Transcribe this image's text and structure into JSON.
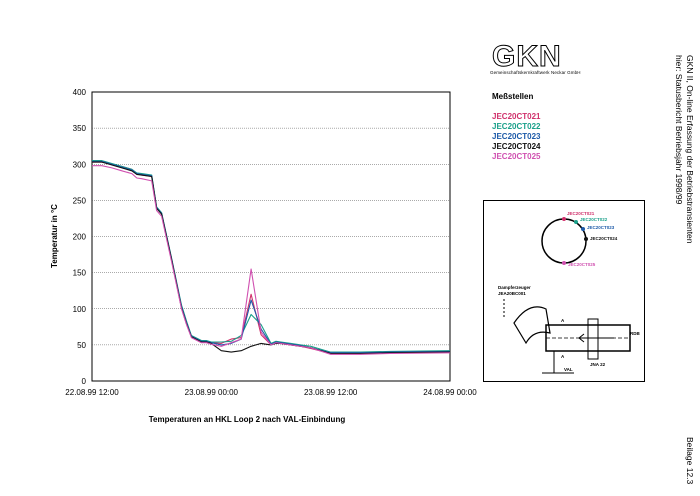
{
  "chart_data": {
    "type": "line",
    "title": "",
    "xlabel": "Temperaturen an HKL Loop 2 nach VAL-Einbindung",
    "ylabel": "Temperatur in °C",
    "xlim": [
      "22.08.99 12:00",
      "24.08.99 00:00"
    ],
    "ylim": [
      0,
      400
    ],
    "grid": true,
    "y_ticks": [
      "400",
      "350",
      "300",
      "250",
      "200",
      "150",
      "100",
      "50",
      "0"
    ],
    "x_ticks": [
      "22.08.99 12:00",
      "23.08.99 00:00",
      "23.08.99 12:00",
      "24.08.99 00:00"
    ],
    "x_hours": [
      0,
      1,
      2,
      3,
      4,
      4.5,
      5,
      6,
      6.5,
      7,
      8,
      9,
      9.5,
      10,
      11,
      11.5,
      12,
      13,
      14,
      15,
      16,
      17,
      18,
      18.5,
      19,
      20,
      21,
      22,
      24,
      27,
      30,
      36
    ],
    "series": [
      {
        "name": "JEC20CT021",
        "color": "#d0306b",
        "values": [
          303,
          303,
          300,
          297,
          293,
          287,
          285,
          283,
          240,
          232,
          168,
          102,
          80,
          62,
          55,
          55,
          53,
          52,
          58,
          60,
          120,
          64,
          50,
          53,
          52,
          50,
          48,
          45,
          38,
          38,
          39,
          40
        ]
      },
      {
        "name": "JEC20CT022",
        "color": "#1aa08a",
        "values": [
          305,
          305,
          301,
          297,
          293,
          288,
          287,
          285,
          241,
          233,
          170,
          105,
          83,
          63,
          56,
          56,
          54,
          54,
          55,
          63,
          92,
          78,
          52,
          55,
          54,
          52,
          50,
          48,
          40,
          40,
          41,
          42
        ]
      },
      {
        "name": "JEC20CT023",
        "color": "#1d5aa8",
        "values": [
          304,
          304,
          300,
          296,
          292,
          287,
          286,
          284,
          240,
          232,
          169,
          103,
          81,
          62,
          55,
          55,
          53,
          50,
          52,
          58,
          112,
          72,
          51,
          54,
          53,
          51,
          49,
          46,
          39,
          39,
          40,
          41
        ]
      },
      {
        "name": "JEC20CT024",
        "color": "#111111",
        "values": [
          303,
          303,
          299,
          295,
          291,
          286,
          285,
          283,
          239,
          231,
          168,
          101,
          79,
          61,
          54,
          54,
          52,
          42,
          40,
          42,
          48,
          52,
          50,
          52,
          52,
          50,
          48,
          46,
          38,
          38,
          39,
          40
        ]
      },
      {
        "name": "JEC20CT025",
        "color": "#d050b0",
        "values": [
          298,
          298,
          295,
          291,
          287,
          281,
          280,
          277,
          236,
          228,
          165,
          100,
          78,
          60,
          53,
          53,
          51,
          48,
          53,
          58,
          155,
          68,
          50,
          53,
          52,
          50,
          48,
          46,
          37,
          37,
          38,
          39
        ]
      }
    ]
  },
  "logo": {
    "text": "GKN",
    "subtitle": "Gemeinschaftskernkraftwerk Neckar GmbH"
  },
  "legend": {
    "title": "Meßstellen"
  },
  "diagram": {
    "damper_label_1": "Dampferzeuger",
    "damper_label_2": "JEA20BC001",
    "val_label": "VAL",
    "jna_label": "JNA 22",
    "rdb_label": "RDB",
    "a_label": "A",
    "point_labels": [
      "JEC20CT021",
      "JEC20CT022",
      "JEC20CT023",
      "JEC20CT024",
      "JEC20CT025"
    ]
  },
  "side": {
    "line1": "GKN II,   On-line Erfassung der Betriebstransienten",
    "line2": "hier: Statusbericht Betriebsjahr 1998/99",
    "beilage": "Beilage 12.3"
  }
}
